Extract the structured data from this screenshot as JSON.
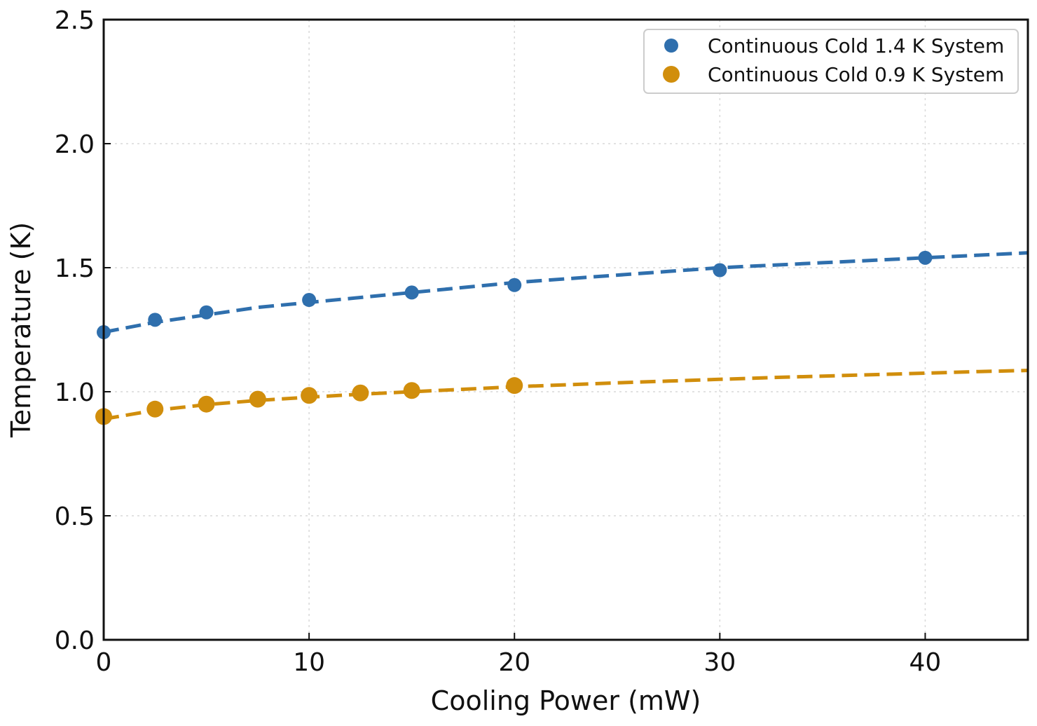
{
  "chart_data": {
    "type": "scatter",
    "xlabel": "Cooling Power (mW)",
    "ylabel": "Temperature (K)",
    "xlim": [
      0,
      45
    ],
    "ylim": [
      0.0,
      2.5
    ],
    "xticks": [
      0,
      10,
      20,
      30,
      40
    ],
    "xtick_labels": [
      "0",
      "10",
      "20",
      "30",
      "40"
    ],
    "yticks": [
      0.0,
      0.5,
      1.0,
      1.5,
      2.0,
      2.5
    ],
    "ytick_labels": [
      "0.0",
      "0.5",
      "1.0",
      "1.5",
      "2.0",
      "2.5"
    ],
    "grid": "dotted",
    "legend_position": "top-right",
    "series": [
      {
        "name": "Continuous Cold 1.4 K System",
        "color": "#2f6fad",
        "marker_size": "small",
        "x": [
          0,
          2.5,
          5,
          10,
          15,
          20,
          30,
          40
        ],
        "y": [
          1.24,
          1.29,
          1.32,
          1.37,
          1.4,
          1.43,
          1.49,
          1.54
        ],
        "fit": {
          "style": "dashed",
          "x": [
            0,
            2.5,
            5,
            7.5,
            10,
            12.5,
            15,
            17.5,
            20,
            22.5,
            25,
            27.5,
            30,
            32.5,
            35,
            37.5,
            40,
            42.5,
            45
          ],
          "y": [
            1.24,
            1.28,
            1.31,
            1.34,
            1.36,
            1.38,
            1.4,
            1.42,
            1.44,
            1.455,
            1.47,
            1.485,
            1.5,
            1.51,
            1.52,
            1.53,
            1.54,
            1.55,
            1.56
          ]
        }
      },
      {
        "name": "Continuous Cold 0.9 K System",
        "color": "#d18e0c",
        "marker_size": "large",
        "x": [
          0,
          2.5,
          5,
          7.5,
          10,
          12.5,
          15,
          20
        ],
        "y": [
          0.9,
          0.93,
          0.95,
          0.97,
          0.985,
          0.995,
          1.005,
          1.025
        ],
        "fit": {
          "style": "dashed",
          "x": [
            0,
            2.5,
            5,
            7.5,
            10,
            12.5,
            15,
            17.5,
            20,
            22.5,
            25,
            27.5,
            30,
            32.5,
            35,
            37.5,
            40,
            42.5,
            45
          ],
          "y": [
            0.89,
            0.925,
            0.948,
            0.965,
            0.978,
            0.99,
            1.0,
            1.01,
            1.02,
            1.028,
            1.036,
            1.043,
            1.05,
            1.057,
            1.063,
            1.069,
            1.075,
            1.081,
            1.086
          ]
        }
      }
    ]
  }
}
